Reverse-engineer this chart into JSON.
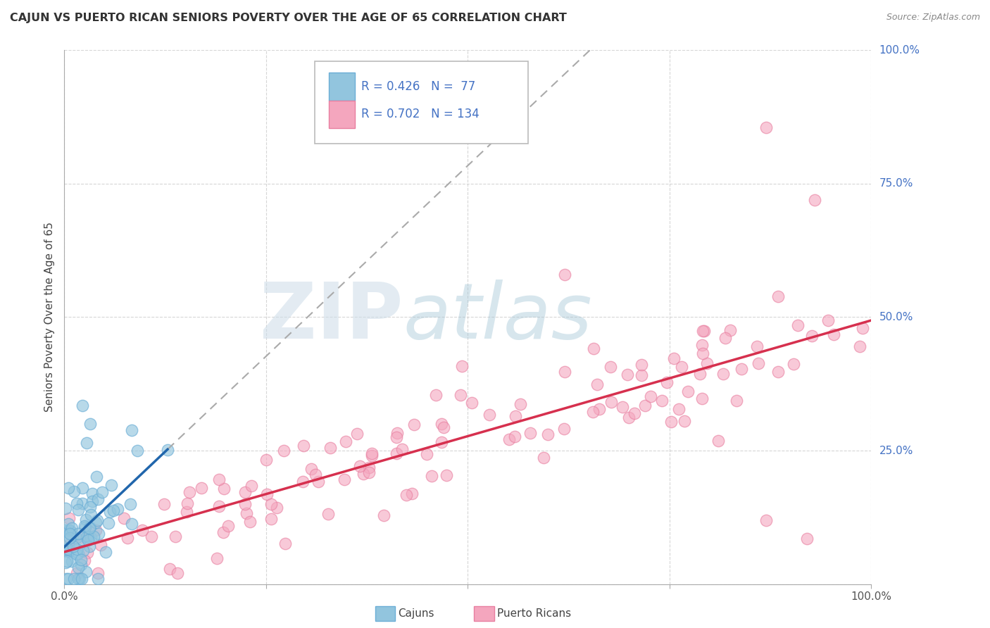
{
  "title": "CAJUN VS PUERTO RICAN SENIORS POVERTY OVER THE AGE OF 65 CORRELATION CHART",
  "source_text": "Source: ZipAtlas.com",
  "ylabel": "Seniors Poverty Over the Age of 65",
  "cajun_R": 0.426,
  "cajun_N": 77,
  "pr_R": 0.702,
  "pr_N": 134,
  "cajun_color": "#92c5de",
  "cajun_edge_color": "#6baed6",
  "cajun_line_color": "#2166ac",
  "pr_color": "#f4a6be",
  "pr_edge_color": "#e87fa0",
  "pr_line_color": "#d6304e",
  "dash_line_color": "#aaaaaa",
  "bg_color": "#ffffff",
  "grid_color": "#cccccc",
  "right_label_color": "#4472c4",
  "title_color": "#333333",
  "source_color": "#888888"
}
